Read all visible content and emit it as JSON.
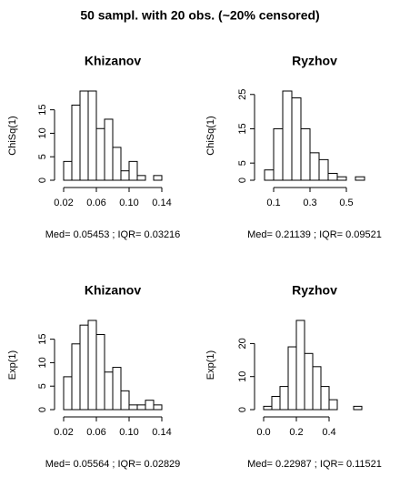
{
  "title": "50 sampl. with 20 obs. (~20% censored)",
  "chart_data": [
    {
      "type": "histogram",
      "title": "Khizanov",
      "ylabel": "ChiSq(1)",
      "xlabel": "Med= 0.05453 ; IQR= 0.03216",
      "bins": [
        0.02,
        0.03,
        0.04,
        0.05,
        0.06,
        0.07,
        0.08,
        0.09,
        0.1,
        0.11,
        0.12,
        0.13,
        0.14
      ],
      "values": [
        4,
        16,
        19,
        19,
        11,
        13,
        7,
        2,
        4,
        1,
        0,
        1
      ],
      "xlim": [
        0.02,
        0.14
      ],
      "xticks": [
        0.02,
        0.06,
        {
          "value": 0.1,
          "label": "0.10"
        },
        0.14
      ],
      "ylim": [
        0,
        19
      ],
      "yticks": [
        0,
        5,
        10,
        15
      ],
      "color": "#ffffff"
    },
    {
      "type": "histogram",
      "title": "Ryzhov",
      "ylabel": "ChiSq(1)",
      "xlabel": "Med= 0.21139 ; IQR= 0.09521",
      "bins": [
        0.05,
        0.1,
        0.15,
        0.2,
        0.25,
        0.3,
        0.35,
        0.4,
        0.45,
        0.5,
        0.55,
        0.6
      ],
      "values": [
        3,
        15,
        26,
        24,
        15,
        8,
        6,
        2,
        1,
        0,
        1
      ],
      "xlim": [
        0.05,
        0.6
      ],
      "xticks": [
        0.1,
        0.3,
        0.5
      ],
      "ylim": [
        0,
        26
      ],
      "yticks": [
        0,
        5,
        15,
        25
      ],
      "color": "#ffffff"
    },
    {
      "type": "histogram",
      "title": "Khizanov",
      "ylabel": "Exp(1)",
      "xlabel": "Med= 0.05564 ; IQR= 0.02829",
      "bins": [
        0.02,
        0.03,
        0.04,
        0.05,
        0.06,
        0.07,
        0.08,
        0.09,
        0.1,
        0.11,
        0.12,
        0.13,
        0.14
      ],
      "values": [
        7,
        14,
        18,
        19,
        16,
        8,
        9,
        4,
        1,
        1,
        2,
        1
      ],
      "xlim": [
        0.02,
        0.14
      ],
      "xticks": [
        0.02,
        0.06,
        {
          "value": 0.1,
          "label": "0.10"
        },
        0.14
      ],
      "ylim": [
        0,
        19
      ],
      "yticks": [
        0,
        5,
        10,
        15
      ],
      "color": "#ffffff"
    },
    {
      "type": "histogram",
      "title": "Ryzhov",
      "ylabel": "Exp(1)",
      "xlabel": "Med= 0.22987 ; IQR= 0.11521",
      "bins": [
        0,
        0.05,
        0.1,
        0.15,
        0.2,
        0.25,
        0.3,
        0.35,
        0.4,
        0.45,
        0.5,
        0.55,
        0.6
      ],
      "values": [
        1,
        4,
        7,
        19,
        27,
        17,
        13,
        7,
        3,
        0,
        0,
        1
      ],
      "xlim": [
        0,
        0.6
      ],
      "xticks": [
        {
          "value": 0,
          "label": "0.0"
        },
        0.2,
        0.4
      ],
      "ylim": [
        0,
        27
      ],
      "yticks": [
        0,
        10,
        20
      ],
      "color": "#ffffff"
    }
  ]
}
